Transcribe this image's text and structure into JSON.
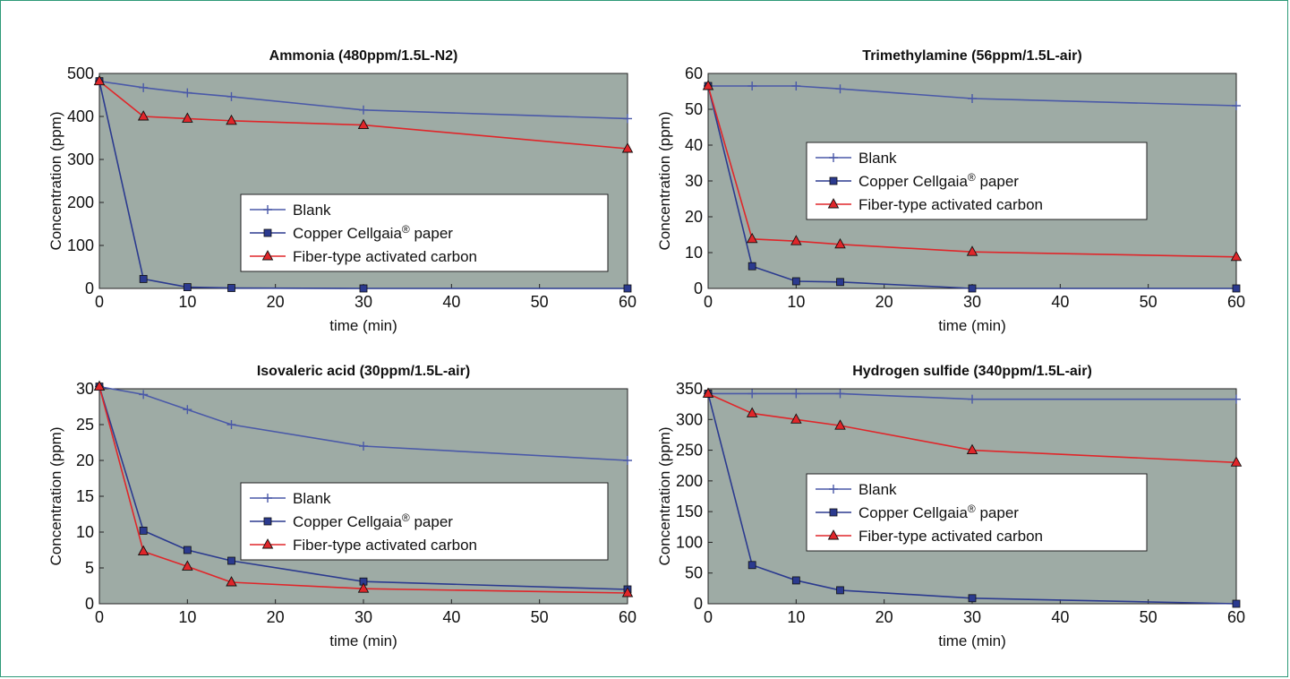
{
  "colors": {
    "plot_bg": "#9eaba5",
    "blank": "#4a59a8",
    "copper": "#2b3a8f",
    "carbon": "#e0262a",
    "frame": "#2e9a78"
  },
  "chart_data": [
    {
      "type": "line",
      "title": "Ammonia (480ppm/1.5L-N2)",
      "xlabel": "time (min)",
      "ylabel": "Concentration (ppm)",
      "xlim": [
        0,
        60
      ],
      "ylim": [
        0,
        500
      ],
      "xticks": [
        0,
        10,
        20,
        30,
        40,
        50,
        60
      ],
      "yticks": [
        0,
        100,
        200,
        300,
        400,
        500
      ],
      "legend_position": "center-right",
      "series": [
        {
          "name": "Blank",
          "marker": "plus",
          "color": "#4a59a8",
          "x": [
            0,
            5,
            10,
            15,
            30,
            60
          ],
          "y": [
            482,
            467,
            455,
            446,
            415,
            395
          ]
        },
        {
          "name": "Copper Cellgaia® paper",
          "marker": "square",
          "color": "#2b3a8f",
          "x": [
            0,
            5,
            10,
            15,
            30,
            60
          ],
          "y": [
            482,
            22,
            3,
            1,
            0,
            0
          ]
        },
        {
          "name": "Fiber-type activated carbon",
          "marker": "triangle",
          "color": "#e0262a",
          "x": [
            0,
            5,
            10,
            15,
            30,
            60
          ],
          "y": [
            482,
            400,
            395,
            390,
            380,
            325
          ]
        }
      ]
    },
    {
      "type": "line",
      "title": "Trimethylamine (56ppm/1.5L-air)",
      "xlabel": "time (min)",
      "ylabel": "Concentration (ppm)",
      "xlim": [
        0,
        60
      ],
      "ylim": [
        0,
        60
      ],
      "xticks": [
        0,
        10,
        20,
        30,
        40,
        50,
        60
      ],
      "yticks": [
        0,
        10,
        20,
        30,
        40,
        50,
        60
      ],
      "legend_position": "center-right",
      "series": [
        {
          "name": "Blank",
          "marker": "plus",
          "color": "#4a59a8",
          "x": [
            0,
            5,
            10,
            15,
            30,
            60
          ],
          "y": [
            56.5,
            56.5,
            56.5,
            55.7,
            53,
            51
          ]
        },
        {
          "name": "Copper Cellgaia® paper",
          "marker": "square",
          "color": "#2b3a8f",
          "x": [
            0,
            5,
            10,
            15,
            30,
            60
          ],
          "y": [
            56.5,
            6.2,
            2,
            1.8,
            0,
            0
          ]
        },
        {
          "name": "Fiber-type activated carbon",
          "marker": "triangle",
          "color": "#e0262a",
          "x": [
            0,
            5,
            10,
            15,
            30,
            60
          ],
          "y": [
            56.5,
            13.8,
            13.2,
            12.3,
            10.2,
            8.8
          ]
        }
      ]
    },
    {
      "type": "line",
      "title": "Isovaleric acid (30ppm/1.5L-air)",
      "xlabel": "time (min)",
      "ylabel": "Concentration (ppm)",
      "xlim": [
        0,
        60
      ],
      "ylim": [
        0,
        30
      ],
      "xticks": [
        0,
        10,
        20,
        30,
        40,
        50,
        60
      ],
      "yticks": [
        0,
        5,
        10,
        15,
        20,
        25,
        30
      ],
      "legend_position": "center-right",
      "series": [
        {
          "name": "Blank",
          "marker": "plus",
          "color": "#4a59a8",
          "x": [
            0,
            5,
            10,
            15,
            30,
            60
          ],
          "y": [
            30.3,
            29.2,
            27.1,
            25,
            22,
            20
          ]
        },
        {
          "name": "Copper Cellgaia® paper",
          "marker": "square",
          "color": "#2b3a8f",
          "x": [
            0,
            5,
            10,
            15,
            30,
            60
          ],
          "y": [
            30.3,
            10.2,
            7.5,
            6,
            3.1,
            2
          ]
        },
        {
          "name": "Fiber-type activated carbon",
          "marker": "triangle",
          "color": "#e0262a",
          "x": [
            0,
            5,
            10,
            15,
            30,
            60
          ],
          "y": [
            30.3,
            7.3,
            5.2,
            3,
            2.1,
            1.5
          ]
        }
      ]
    },
    {
      "type": "line",
      "title": "Hydrogen sulfide (340ppm/1.5L-air)",
      "xlabel": "time (min)",
      "ylabel": "Concentration (ppm)",
      "xlim": [
        0,
        60
      ],
      "ylim": [
        0,
        350
      ],
      "xticks": [
        0,
        10,
        20,
        30,
        40,
        50,
        60
      ],
      "yticks": [
        0,
        50,
        100,
        150,
        200,
        250,
        300,
        350
      ],
      "legend_position": "center-right",
      "series": [
        {
          "name": "Blank",
          "marker": "plus",
          "color": "#4a59a8",
          "x": [
            0,
            5,
            10,
            15,
            30,
            60
          ],
          "y": [
            342,
            342,
            342,
            342,
            333,
            333
          ]
        },
        {
          "name": "Copper Cellgaia® paper",
          "marker": "square",
          "color": "#2b3a8f",
          "x": [
            0,
            5,
            10,
            15,
            30,
            60
          ],
          "y": [
            342,
            63,
            38,
            22,
            9,
            0
          ]
        },
        {
          "name": "Fiber-type activated carbon",
          "marker": "triangle",
          "color": "#e0262a",
          "x": [
            0,
            5,
            10,
            15,
            30,
            60
          ],
          "y": [
            342,
            310,
            300,
            290,
            250,
            230
          ]
        }
      ]
    }
  ]
}
